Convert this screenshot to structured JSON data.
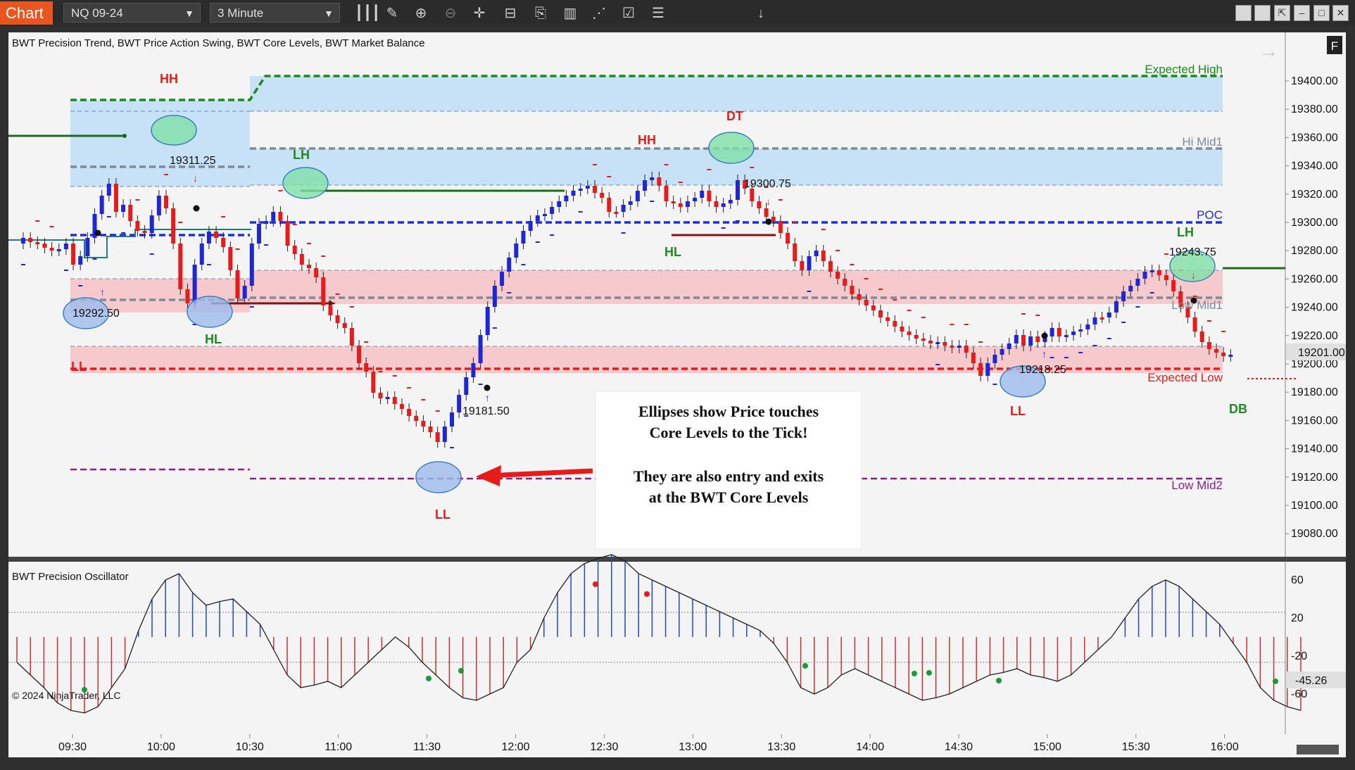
{
  "toolbar": {
    "tab_label": "Chart",
    "instrument": "NQ 09-24",
    "interval": "3 Minute",
    "icons": [
      "bar-type-icon",
      "draw-pencil-icon",
      "zoom-in-icon",
      "zoom-out-icon",
      "crosshair-icon",
      "data-box-icon",
      "chart-template-icon",
      "indicators-icon",
      "strategies-icon",
      "properties-icon",
      "list-icon"
    ],
    "window_buttons": [
      "tile-icon",
      "tile2-icon",
      "maximize-chart-icon",
      "minimize-icon",
      "restore-icon",
      "close-icon"
    ]
  },
  "main_panel": {
    "title": "BWT Precision Trend, BWT Price Action Swing, BWT Core Levels, BWT Market Balance",
    "f_button": "F",
    "last_price": "19201.00",
    "y_ticks": [
      "19400.00",
      "19380.00",
      "19360.00",
      "19340.00",
      "19320.00",
      "19300.00",
      "19280.00",
      "19260.00",
      "19240.00",
      "19220.00",
      "19200.00",
      "19180.00",
      "19160.00",
      "19140.00",
      "19120.00",
      "19100.00",
      "19080.00"
    ],
    "level_labels": {
      "expected_high": "Expected High",
      "hi_mid1": "Hi Mid1",
      "poc": "POC",
      "low_mid1": "Low Mid1",
      "expected_low": "Expected Low",
      "low_mid2": "Low Mid2"
    },
    "swing_labels": [
      {
        "text": "HH",
        "color": "#e02020"
      },
      {
        "text": "LH",
        "color": "#1f8a1f"
      },
      {
        "text": "HL",
        "color": "#1f8a1f"
      },
      {
        "text": "LL",
        "color": "#e02020"
      },
      {
        "text": "LL",
        "color": "#e02020"
      },
      {
        "text": "HH",
        "color": "#e02020"
      },
      {
        "text": "DT",
        "color": "#e02020"
      },
      {
        "text": "HL",
        "color": "#1f8a1f"
      },
      {
        "text": "LL",
        "color": "#e02020"
      },
      {
        "text": "LH",
        "color": "#1f8a1f"
      },
      {
        "text": "DB",
        "color": "#1f8a1f"
      }
    ],
    "price_labels": [
      "19311.25",
      "19292.50",
      "19181.50",
      "19300.75",
      "19218.25",
      "19243.75"
    ],
    "annotation": {
      "line1": "Ellipses show Price touches",
      "line2": "Core Levels to the Tick!",
      "line3": "They are also entry and exits",
      "line4": "at the BWT Core Levels"
    }
  },
  "oscillator_panel": {
    "title": "BWT Precision Oscillator",
    "y_ticks": [
      "60",
      "20",
      "-20",
      "-60"
    ],
    "value": "-45.26",
    "copyright": "© 2024 NinjaTrader, LLC"
  },
  "x_axis": {
    "ticks": [
      "09:30",
      "10:00",
      "10:30",
      "11:00",
      "11:30",
      "12:00",
      "12:30",
      "13:00",
      "13:30",
      "14:00",
      "14:30",
      "15:00",
      "15:30",
      "16:00"
    ]
  },
  "colors": {
    "up_bar": "#1e27d8",
    "down_bar": "#e81b1b",
    "panel_bg": "#f4f4f4",
    "accent": "#e8551f"
  }
}
